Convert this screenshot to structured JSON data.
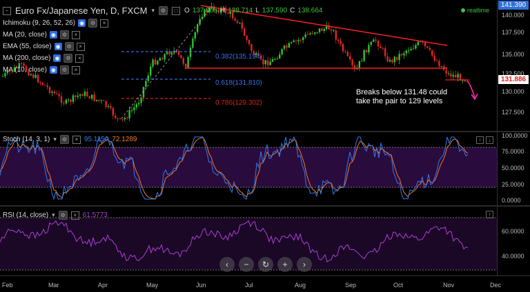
{
  "header": {
    "symbol": "Euro Fx/Japanese Yen, D, FXCM",
    "ohlc": [
      {
        "k": "O",
        "v": "137.605"
      },
      {
        "k": "H",
        "v": "138.714"
      },
      {
        "k": "L",
        "v": "137.590"
      },
      {
        "k": "C",
        "v": "138.664"
      }
    ],
    "realtime": "realtime"
  },
  "indicators": [
    {
      "label": "Ichimoku (9, 26, 52, 26)"
    },
    {
      "label": "MA (20, close)"
    },
    {
      "label": "EMA (55, close)"
    },
    {
      "label": "MA (200, close)"
    },
    {
      "label": "MA (10, close)"
    }
  ],
  "price_axis": {
    "ticks": [
      "140.000",
      "137.500",
      "135.000",
      "132.500",
      "130.000",
      "127.500"
    ],
    "top_label": "141.390",
    "last_price": "131.886",
    "last_color": "#e01d1d"
  },
  "fibs": [
    {
      "label": "0.382(135.194)",
      "color": "#3a6ee8"
    },
    {
      "label": "0.618(131.810)",
      "color": "#3a6ee8"
    },
    {
      "label": "0.786(129.302)",
      "color": "#e01d1d"
    }
  ],
  "annotation": {
    "line1": "Breaks below 131.48 could",
    "line2": "take the pair to 129 levels"
  },
  "stoch": {
    "label": "Stoch (14, 3, 1)",
    "k_value": "95.1150",
    "d_value": "72.1289",
    "k_color": "#2f7cf0",
    "d_color": "#f07a2a",
    "ticks": [
      "100.0000",
      "75.0000",
      "50.0000",
      "25.0000",
      "0.0000"
    ]
  },
  "rsi": {
    "label": "RSI (14, close)",
    "value": "61.5773",
    "color": "#b03fd6",
    "ticks": [
      "60.0000",
      "40.0000"
    ]
  },
  "x_axis": {
    "labels": [
      "Feb",
      "Mar",
      "Apr",
      "May",
      "Jun",
      "Jul",
      "Aug",
      "Sep",
      "Oct",
      "Nov",
      "Dec"
    ]
  },
  "nav": {
    "buttons": [
      {
        "name": "scroll-left-button",
        "glyph": "‹"
      },
      {
        "name": "zoom-out-button",
        "glyph": "−"
      },
      {
        "name": "reset-button",
        "glyph": "↻"
      },
      {
        "name": "zoom-in-button",
        "glyph": "+"
      },
      {
        "name": "scroll-right-button",
        "glyph": "›"
      }
    ]
  }
}
